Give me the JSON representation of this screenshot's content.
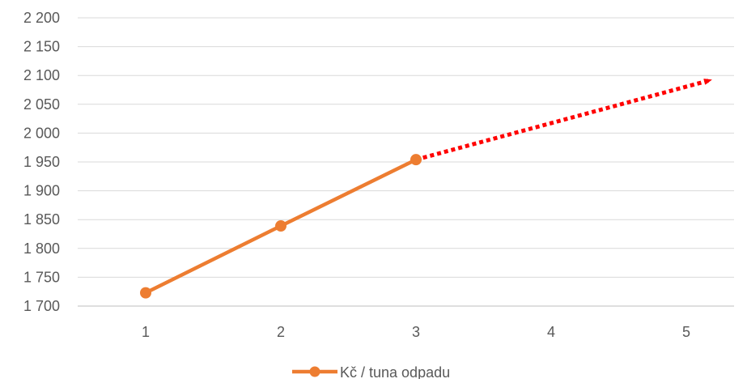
{
  "chart_data": {
    "type": "line",
    "categories": [
      "1",
      "2",
      "3",
      "4",
      "5"
    ],
    "y_ticks": [
      "1 700",
      "1 750",
      "1 800",
      "1 850",
      "1 900",
      "1 950",
      "2 000",
      "2 050",
      "2 100",
      "2 150",
      "2 200"
    ],
    "ylim": [
      1700,
      2200
    ],
    "grid": true,
    "legend": "bottom",
    "series": [
      {
        "name": "Kč / tuna odpadu",
        "x": [
          1,
          2,
          3
        ],
        "values": [
          1723,
          1839,
          1954
        ],
        "color": "#ED7D31",
        "marker": "circle"
      },
      {
        "name": "",
        "x": [
          3,
          5
        ],
        "values": [
          1954,
          2092
        ],
        "color": "#FF0000",
        "style": "dotted-arrow"
      }
    ]
  }
}
